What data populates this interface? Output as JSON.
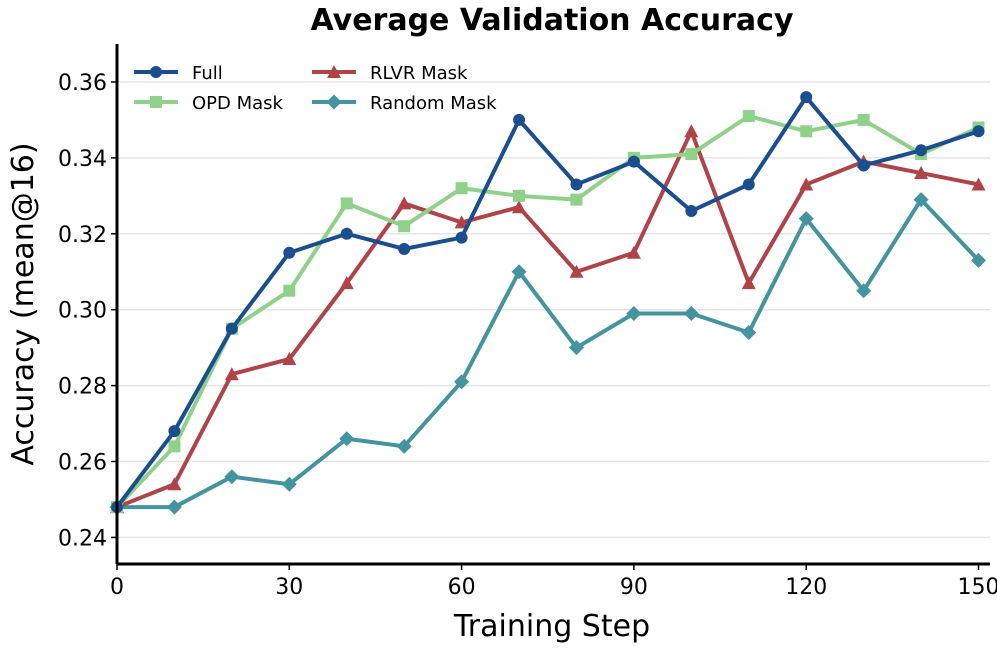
{
  "chart_data": {
    "type": "line",
    "title": "Average Validation Accuracy",
    "xlabel": "Training Step",
    "ylabel": "Accuracy (mean@16)",
    "xlim": [
      0,
      152
    ],
    "ylim": [
      0.233,
      0.37
    ],
    "xticks": [
      0,
      30,
      60,
      90,
      120,
      150
    ],
    "xtick_labels": [
      "0",
      "30",
      "60",
      "90",
      "120",
      "150"
    ],
    "yticks": [
      0.24,
      0.26,
      0.28,
      0.3,
      0.32,
      0.34,
      0.36
    ],
    "ytick_labels": [
      "0.24",
      "0.26",
      "0.28",
      "0.30",
      "0.32",
      "0.34",
      "0.36"
    ],
    "grid": "horizontal",
    "legend_position": "top-left",
    "x": [
      0,
      10,
      20,
      30,
      40,
      50,
      60,
      70,
      80,
      90,
      100,
      110,
      120,
      130,
      140,
      150
    ],
    "series": [
      {
        "name": "Full",
        "color": "#1b4e8f",
        "marker": "circle",
        "values": [
          0.248,
          0.268,
          0.295,
          0.315,
          0.32,
          0.316,
          0.319,
          0.35,
          0.333,
          0.339,
          0.326,
          0.333,
          0.356,
          0.338,
          0.342,
          0.347
        ]
      },
      {
        "name": "OPD Mask",
        "color": "#8fd189",
        "marker": "square",
        "values": [
          0.248,
          0.264,
          0.295,
          0.305,
          0.328,
          0.322,
          0.332,
          0.33,
          0.329,
          0.34,
          0.341,
          0.351,
          0.347,
          0.35,
          0.341,
          0.348
        ]
      },
      {
        "name": "RLVR Mask",
        "color": "#b04347",
        "marker": "triangle",
        "values": [
          0.248,
          0.254,
          0.283,
          0.287,
          0.307,
          0.328,
          0.323,
          0.327,
          0.31,
          0.315,
          0.347,
          0.307,
          0.333,
          0.339,
          0.336,
          0.333
        ]
      },
      {
        "name": "Random Mask",
        "color": "#4494a0",
        "marker": "diamond",
        "values": [
          0.248,
          0.248,
          0.256,
          0.254,
          0.266,
          0.264,
          0.281,
          0.31,
          0.29,
          0.299,
          0.299,
          0.294,
          0.324,
          0.305,
          0.329,
          0.313
        ]
      }
    ]
  }
}
